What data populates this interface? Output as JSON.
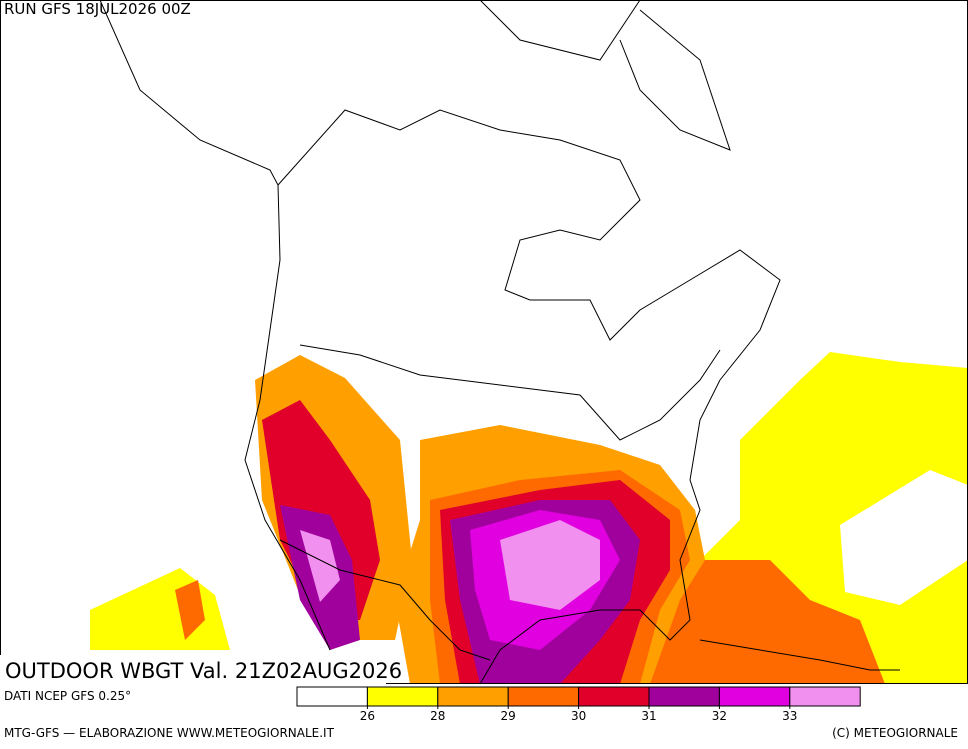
{
  "header": {
    "run": "RUN GFS 18JUL2026 00Z"
  },
  "map": {
    "label": "OUTDOOR WBGT Val. 21Z02AUG2026"
  },
  "legend": {
    "source": "DATI NCEP GFS 0.25°",
    "colors": [
      "#ffffff",
      "#ffff00",
      "#ffa000",
      "#ff6a00",
      "#e0002a",
      "#a0009c",
      "#e000e0",
      "#f290f0"
    ],
    "ticks": [
      26,
      28,
      29,
      30,
      31,
      32,
      33
    ]
  },
  "footer": {
    "left": "MTG-GFS — ELABORAZIONE WWW.METEOGIORNALE.IT",
    "right": "(C) METEOGIORNALE"
  }
}
